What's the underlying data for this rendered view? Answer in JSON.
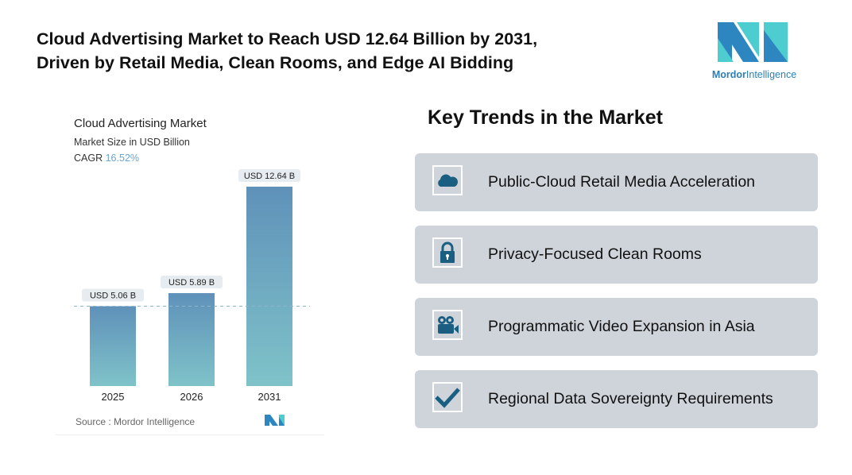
{
  "header": {
    "title_line1": "Cloud Advertising Market to Reach USD 12.64 Billion by 2031,",
    "title_line2": "Driven by Retail Media, Clean Rooms, and Edge AI Bidding"
  },
  "logo": {
    "word1": "Mordor",
    "word2": "Intelligence",
    "colors": [
      "#2e86c1",
      "#4ecdd0"
    ]
  },
  "chart_data": {
    "type": "bar",
    "title": "Cloud Advertising Market",
    "subtitle": "Market Size in USD Billion",
    "cagr_label": "CAGR",
    "cagr_value": "16.52%",
    "categories": [
      "2025",
      "2026",
      "2031"
    ],
    "values": [
      5.06,
      5.89,
      12.64
    ],
    "data_labels": [
      "USD 5.06 B",
      "USD 5.89 B",
      "USD 12.64 B"
    ],
    "ylim": [
      0,
      12.64
    ],
    "reference_line": 5.06,
    "source": "Source :  Mordor Intelligence",
    "bar_gradient": [
      "#5f91b9",
      "#7fc3c9"
    ]
  },
  "trends": {
    "heading": "Key Trends in the Market",
    "items": [
      {
        "icon": "cloud-icon",
        "label": "Public-Cloud Retail Media Acceleration"
      },
      {
        "icon": "lock-icon",
        "label": "Privacy-Focused Clean Rooms"
      },
      {
        "icon": "video-camera-icon",
        "label": "Programmatic Video Expansion in Asia"
      },
      {
        "icon": "checkmark-icon",
        "label": "Regional Data Sovereignty Requirements"
      }
    ],
    "icon_color": "#1a5f82"
  }
}
